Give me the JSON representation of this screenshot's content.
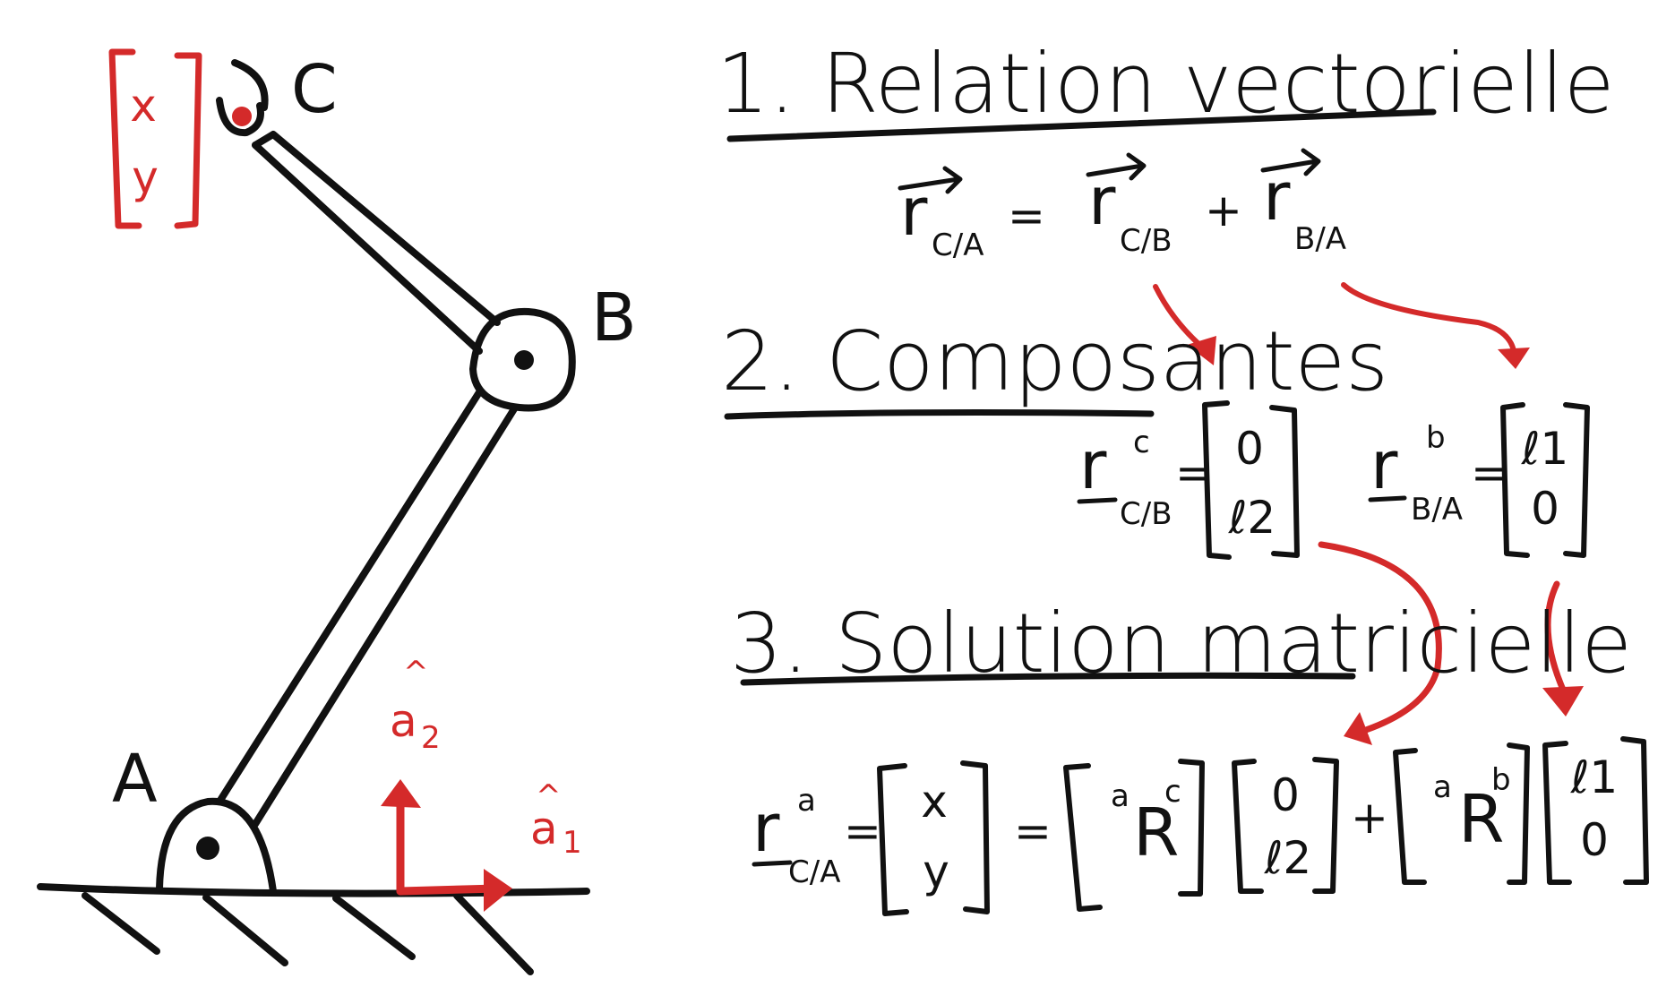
{
  "colors": {
    "ink": "#111111",
    "accent": "#d42a2a",
    "background": "#ffffff"
  },
  "diagram": {
    "points": {
      "a": "A",
      "b": "B",
      "c": "C"
    },
    "position_vector": {
      "x": "x",
      "y": "y"
    },
    "frame": {
      "a1_base": "a",
      "a1_sub": "1",
      "a2_base": "a",
      "a2_sub": "2",
      "hat": "^"
    }
  },
  "section1": {
    "title": "1. Relation vectorielle",
    "r": "r",
    "sub_ca": "C/A",
    "sub_cb": "C/B",
    "sub_ba": "B/A",
    "eq": "=",
    "plus": "+"
  },
  "section2": {
    "title": "2. Composantes",
    "r": "r",
    "sup_c": "c",
    "sub_cb": "C/B",
    "sup_b": "b",
    "sub_ba": "B/A",
    "eq": "=",
    "vec_cb": [
      "0",
      "ℓ2"
    ],
    "vec_ba": [
      "ℓ1",
      "0"
    ]
  },
  "section3": {
    "title": "3. Solution matricielle",
    "r": "r",
    "sup_a": "a",
    "sub_ca": "C/A",
    "eq": "=",
    "xy": [
      "x",
      "y"
    ],
    "rot1": {
      "pre": "a",
      "R": "R",
      "post": "c"
    },
    "rot2": {
      "pre": "a",
      "R": "R",
      "post": "b"
    },
    "plus": "+",
    "vec_cb": [
      "0",
      "ℓ2"
    ],
    "vec_ba": [
      "ℓ1",
      "0"
    ]
  }
}
